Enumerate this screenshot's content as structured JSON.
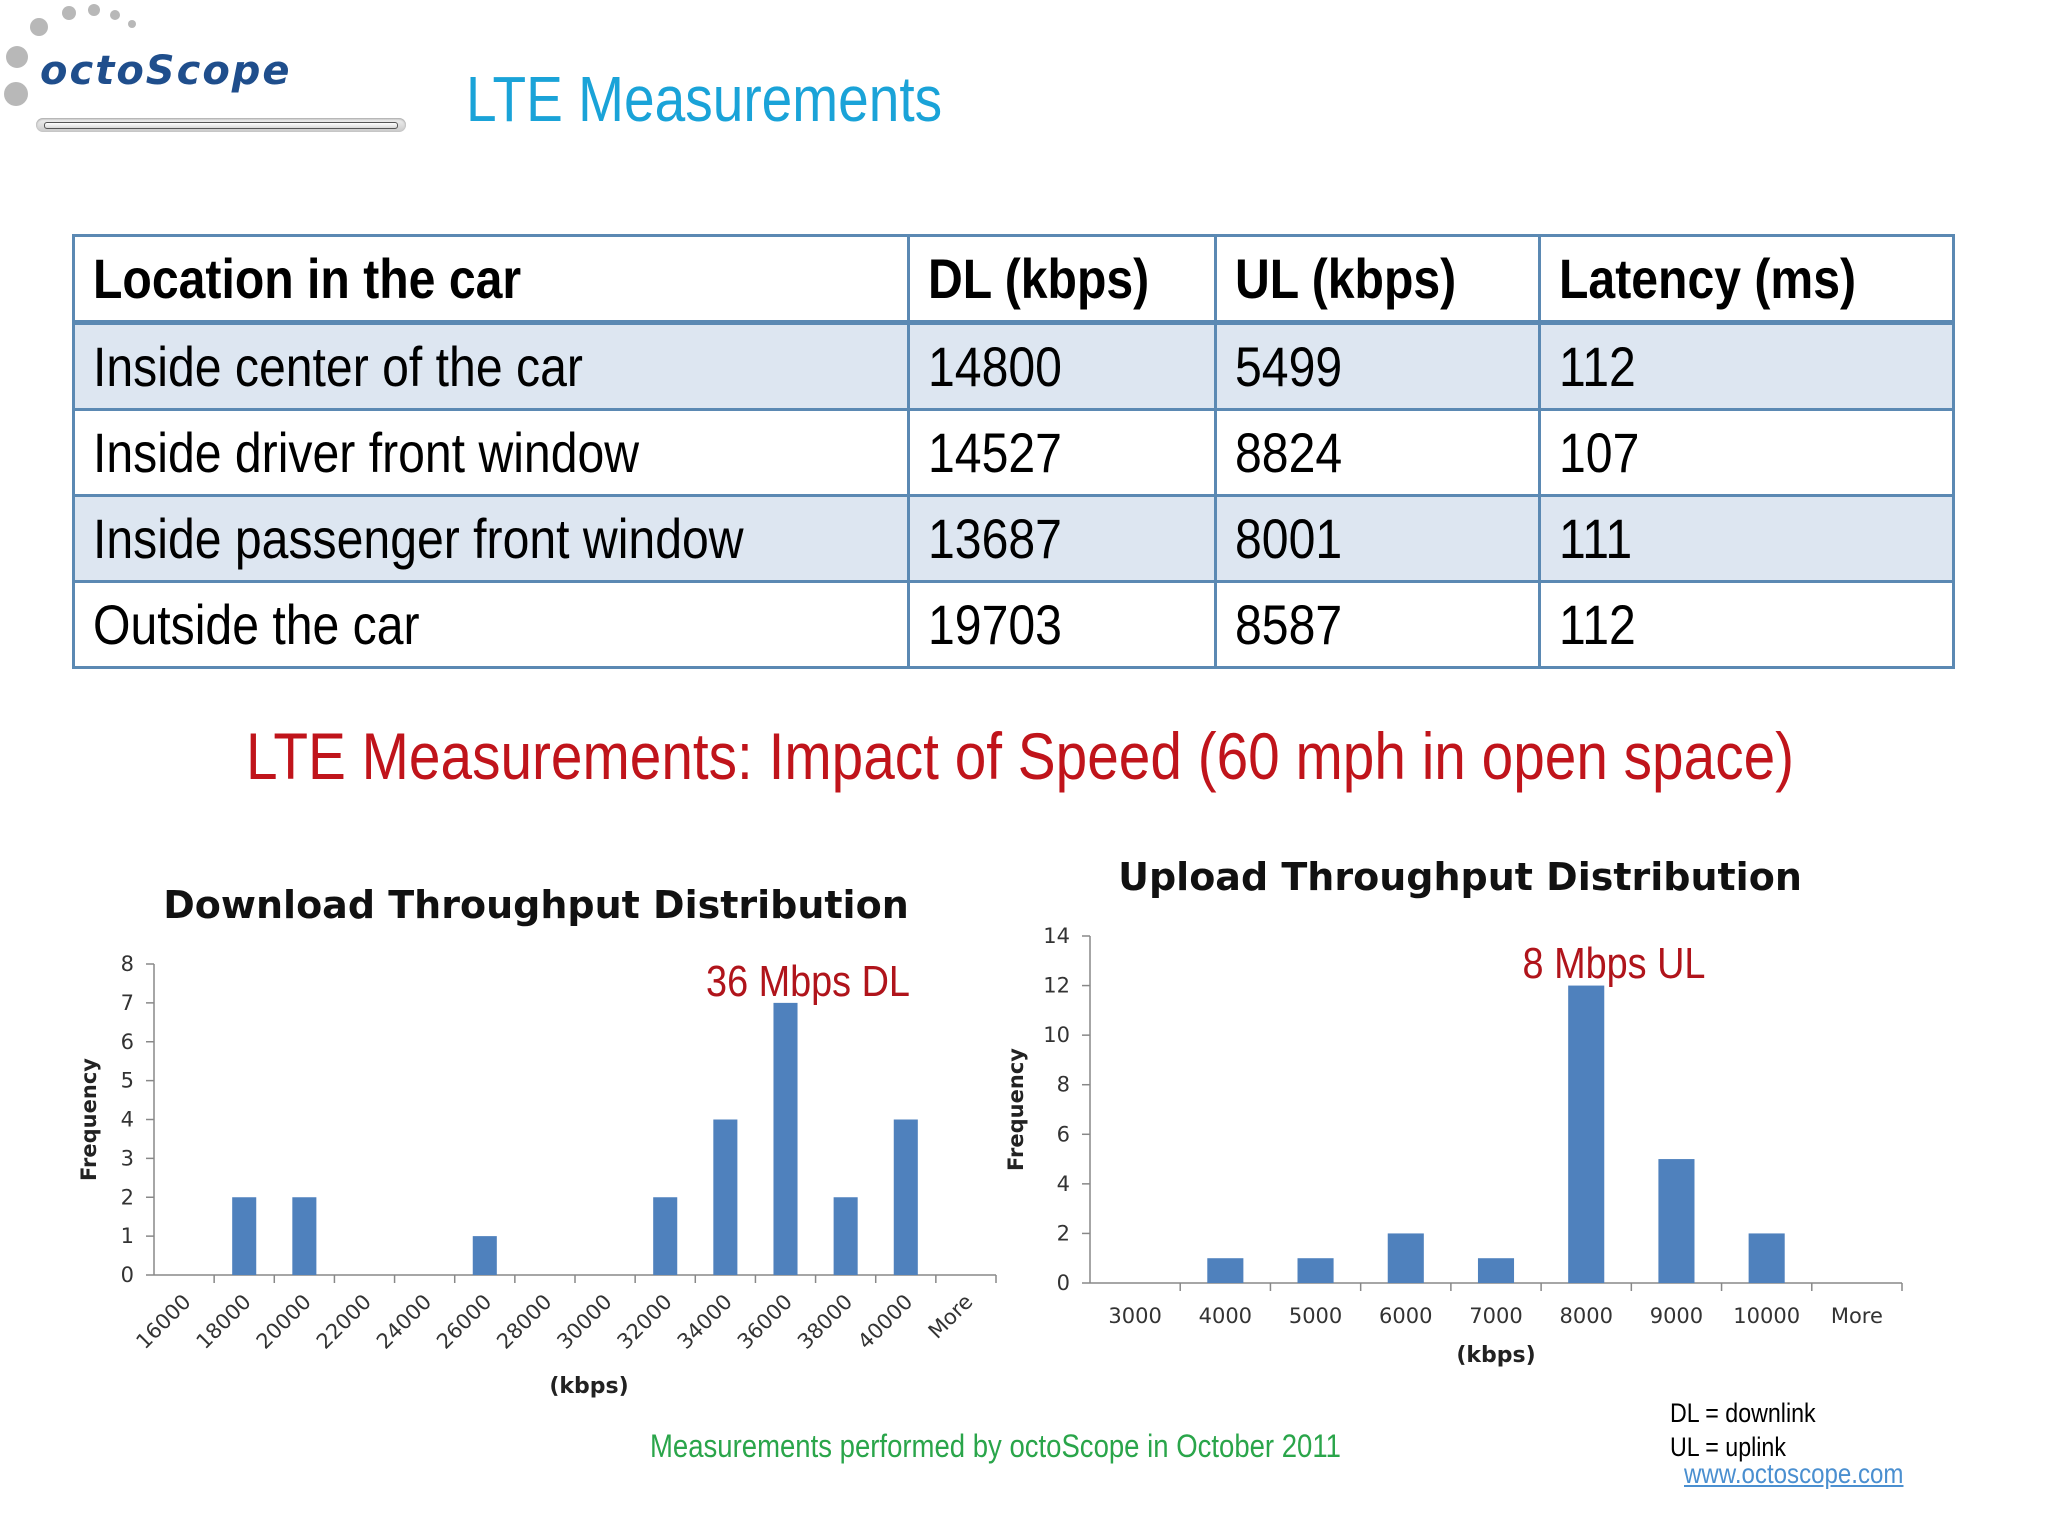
{
  "logo": {
    "text": "octoScope"
  },
  "slide_title": "LTE Measurements",
  "table": {
    "headers": [
      "Location in the car",
      "DL (kbps)",
      "UL (kbps)",
      "Latency (ms)"
    ],
    "rows": [
      [
        "Inside center of the car",
        "14800",
        "5499",
        "112"
      ],
      [
        "Inside driver front window",
        "14527",
        "8824",
        "107"
      ],
      [
        "Inside passenger front window",
        "13687",
        "8001",
        "111"
      ],
      [
        "Outside the car",
        "19703",
        "8587",
        "112"
      ]
    ]
  },
  "speed_title": "LTE Measurements:  Impact of Speed (60 mph in open space)",
  "chart_data": [
    {
      "type": "bar",
      "title": "Download Throughput Distribution",
      "xlabel": "(kbps)",
      "ylabel": "Frequency",
      "categories": [
        "16000",
        "18000",
        "20000",
        "22000",
        "24000",
        "26000",
        "28000",
        "30000",
        "32000",
        "34000",
        "36000",
        "38000",
        "40000",
        "More"
      ],
      "values": [
        0,
        2,
        2,
        0,
        0,
        1,
        0,
        0,
        2,
        4,
        7,
        2,
        4,
        0
      ],
      "ylim": [
        0,
        8
      ],
      "yticks": [
        0,
        1,
        2,
        3,
        4,
        5,
        6,
        7,
        8
      ],
      "annotation": "36 Mbps DL",
      "color": "#4f81bd",
      "annotation_color": "#b0141b",
      "grid": false
    },
    {
      "type": "bar",
      "title": "Upload Throughput Distribution",
      "xlabel": "(kbps)",
      "ylabel": "Frequency",
      "categories": [
        "3000",
        "4000",
        "5000",
        "6000",
        "7000",
        "8000",
        "9000",
        "10000",
        "More"
      ],
      "values": [
        0,
        1,
        1,
        2,
        1,
        12,
        5,
        2,
        0
      ],
      "ylim": [
        0,
        14
      ],
      "yticks": [
        0,
        2,
        4,
        6,
        8,
        10,
        12,
        14
      ],
      "annotation": "8 Mbps UL",
      "color": "#4f81bd",
      "annotation_color": "#b0141b",
      "grid": false
    }
  ],
  "footer": {
    "credit": "Measurements performed by octoScope in October 2011",
    "legend_dl": "DL = downlink",
    "legend_ul": "UL = uplink",
    "website": "www.octoscope.com"
  }
}
